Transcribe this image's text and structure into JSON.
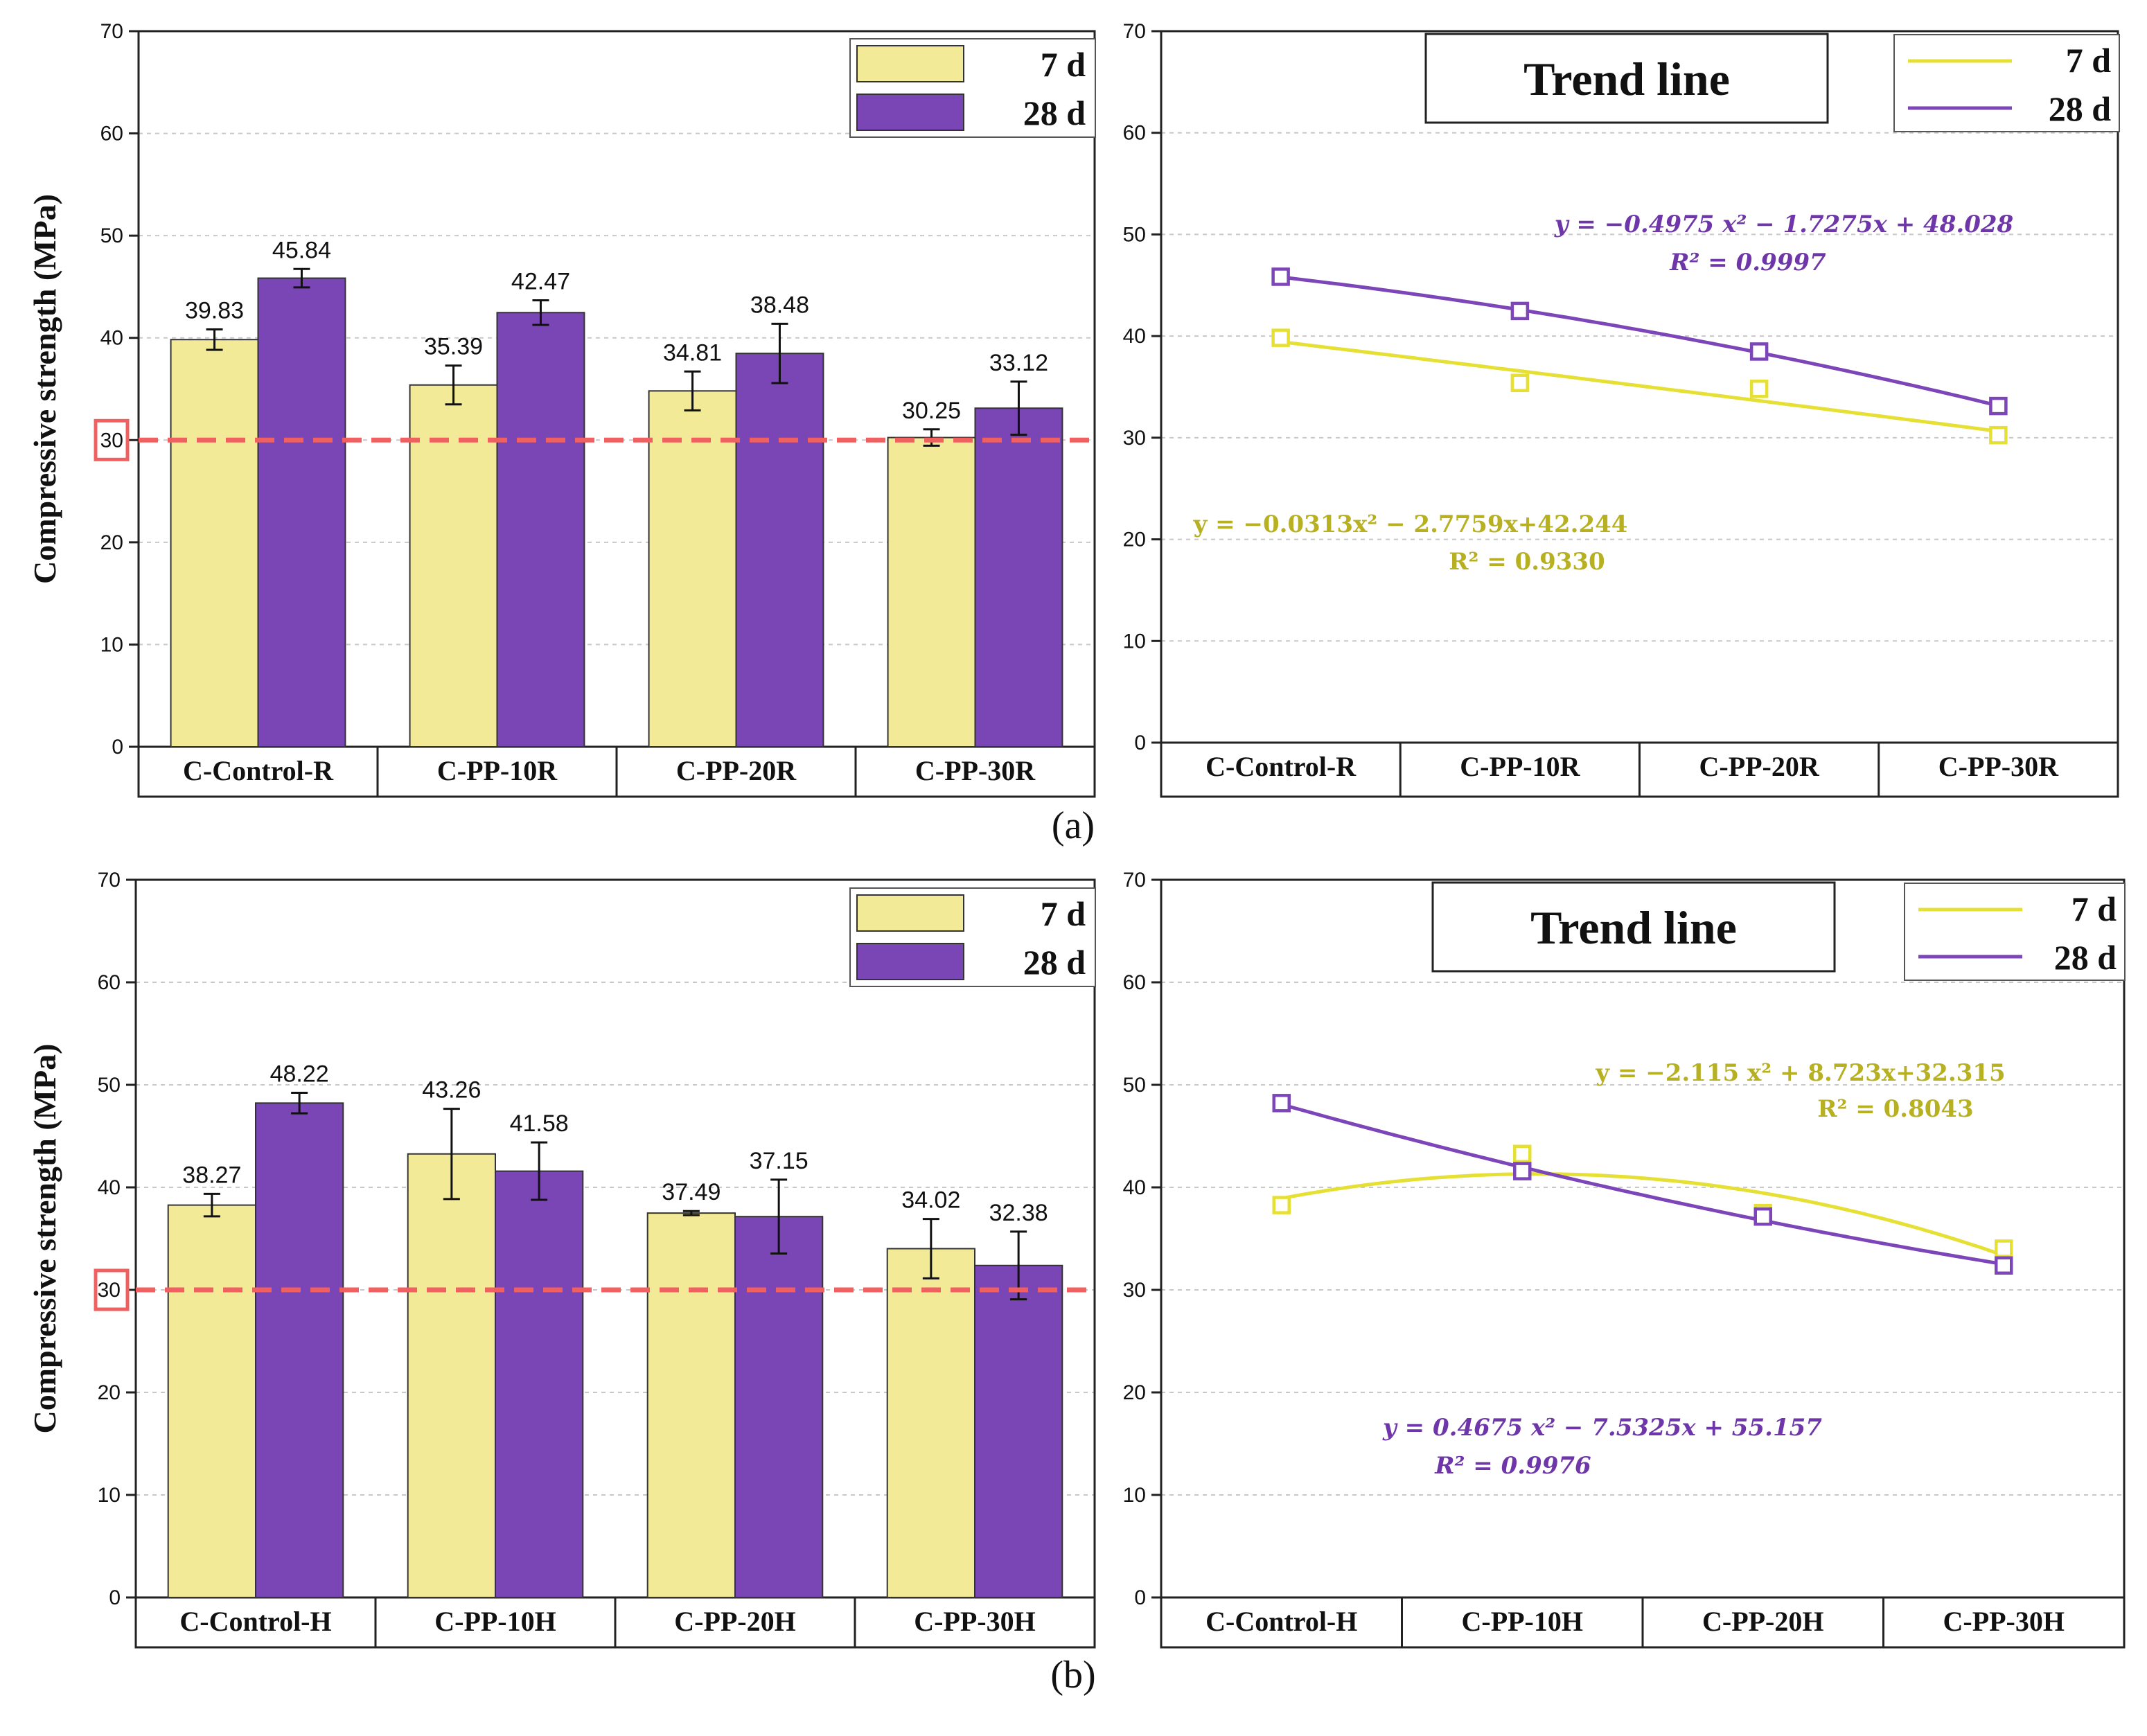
{
  "colors": {
    "d7_fill": "#f2ea96",
    "d28_fill": "#7a45b5",
    "d7_line": "#e6e034",
    "d28_line": "#7c45b8",
    "d7_eq": "#b7b020",
    "d28_eq": "#6e36a8",
    "threshold": "#f06060",
    "grid": "#c8c8c8"
  },
  "panels": [
    {
      "tag": "(a)",
      "tag_letter": "a",
      "bar_chart": {
        "ylabel": "Compressive strength (MPa)",
        "threshold_label": "30",
        "threshold": 30
      },
      "trend_title": "Trend line",
      "eq_7d": {
        "line1": "y = −0.0313x² − 2.7759x+42.244",
        "line2": "R² = 0.9330"
      },
      "eq_28d": {
        "line1": "y = −0.4975 x² − 1.7275x + 48.028",
        "line2": "R² = 0.9997"
      }
    },
    {
      "tag": "(b)",
      "tag_letter": "b",
      "bar_chart": {
        "ylabel": "Compressive strength (MPa)",
        "threshold_label": "30",
        "threshold": 30
      },
      "trend_title": "Trend line",
      "eq_7d": {
        "line1": "y = −2.115 x² + 8.723x+32.315",
        "line2": "R² = 0.8043"
      },
      "eq_28d": {
        "line1": "y = 0.4675 x² − 7.5325x + 55.157",
        "line2": "R² = 0.9976"
      }
    }
  ],
  "chart_data": [
    {
      "type": "bar",
      "panel": "a",
      "categories": [
        "C-Control-R",
        "C-PP-10R",
        "C-PP-20R",
        "C-PP-30R"
      ],
      "series": [
        {
          "name": "7 d",
          "values": [
            39.83,
            35.39,
            34.81,
            30.25
          ],
          "errors": [
            1.0,
            1.9,
            1.9,
            0.8
          ]
        },
        {
          "name": "28 d",
          "values": [
            45.84,
            42.47,
            38.48,
            33.12
          ],
          "errors": [
            0.9,
            1.2,
            2.9,
            2.6
          ]
        }
      ],
      "value_labels_7d": [
        "39.83",
        "35.39",
        "34.81",
        "30.25"
      ],
      "value_labels_28d": [
        "45.84",
        "42.47",
        "38.48",
        "33.12"
      ],
      "ylabel": "Compressive strength (MPa)",
      "ylim": [
        0,
        70
      ],
      "yticks": [
        "0",
        "10",
        "20",
        "30",
        "40",
        "50",
        "60",
        "70"
      ],
      "legend": [
        "7 d",
        "28 d"
      ],
      "legend_position": "top-right",
      "reference_line": 30,
      "grid": true
    },
    {
      "type": "line",
      "panel": "a",
      "title": "Trend line",
      "categories": [
        "C-Control-R",
        "C-PP-10R",
        "C-PP-20R",
        "C-PP-30R"
      ],
      "series": [
        {
          "name": "7 d",
          "values": [
            39.83,
            35.39,
            34.81,
            30.25
          ],
          "fit": [
            -0.0313,
            -2.7759,
            42.244
          ]
        },
        {
          "name": "28 d",
          "values": [
            45.84,
            42.47,
            38.48,
            33.12
          ],
          "fit": [
            -0.4975,
            -1.7275,
            48.028
          ]
        }
      ],
      "ylim": [
        0,
        70
      ],
      "yticks": [
        "0",
        "10",
        "20",
        "30",
        "40",
        "50",
        "60",
        "70"
      ],
      "legend": [
        "7 d",
        "28 d"
      ],
      "legend_position": "top-right",
      "grid": true
    },
    {
      "type": "bar",
      "panel": "b",
      "categories": [
        "C-Control-H",
        "C-PP-10H",
        "C-PP-20H",
        "C-PP-30H"
      ],
      "series": [
        {
          "name": "7 d",
          "values": [
            38.27,
            43.26,
            37.49,
            34.02
          ],
          "errors": [
            1.1,
            4.4,
            0.2,
            2.9
          ]
        },
        {
          "name": "28 d",
          "values": [
            48.22,
            41.58,
            37.15,
            32.38
          ],
          "errors": [
            1.0,
            2.8,
            3.6,
            3.3
          ]
        }
      ],
      "value_labels_7d": [
        "38.27",
        "43.26",
        "37.49",
        "34.02"
      ],
      "value_labels_28d": [
        "48.22",
        "41.58",
        "37.15",
        "32.38"
      ],
      "ylabel": "Compressive strength (MPa)",
      "ylim": [
        0,
        70
      ],
      "yticks": [
        "0",
        "10",
        "20",
        "30",
        "40",
        "50",
        "60",
        "70"
      ],
      "legend": [
        "7 d",
        "28 d"
      ],
      "legend_position": "top-right",
      "reference_line": 30,
      "grid": true
    },
    {
      "type": "line",
      "panel": "b",
      "title": "Trend line",
      "categories": [
        "C-Control-H",
        "C-PP-10H",
        "C-PP-20H",
        "C-PP-30H"
      ],
      "series": [
        {
          "name": "7 d",
          "values": [
            38.27,
            43.26,
            37.49,
            34.02
          ],
          "fit": [
            -2.115,
            8.723,
            32.315
          ]
        },
        {
          "name": "28 d",
          "values": [
            48.22,
            41.58,
            37.15,
            32.38
          ],
          "fit": [
            0.4675,
            -7.5325,
            55.157
          ]
        }
      ],
      "ylim": [
        0,
        70
      ],
      "yticks": [
        "0",
        "10",
        "20",
        "30",
        "40",
        "50",
        "60",
        "70"
      ],
      "legend": [
        "7 d",
        "28 d"
      ],
      "legend_position": "top-right",
      "grid": true
    }
  ]
}
